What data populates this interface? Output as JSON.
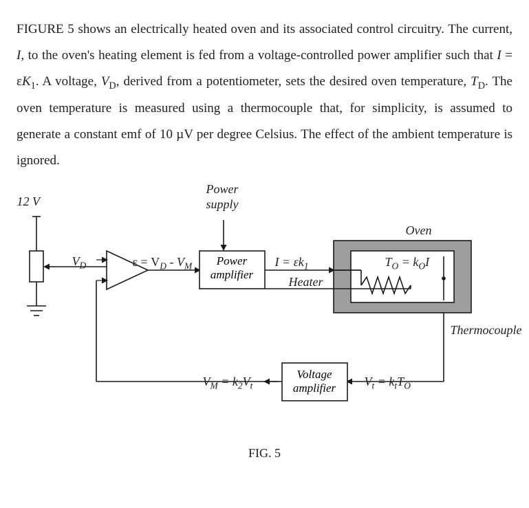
{
  "paragraph": {
    "parts": [
      {
        "t": "FIGURE 5 shows an electrically heated oven and its associated control circuitry. The current, "
      },
      {
        "t": "I",
        "i": true
      },
      {
        "t": ", to the oven's heating element is fed from a voltage-controlled power amplifier such that "
      },
      {
        "t": "I ",
        "i": true
      },
      {
        "t": "= ε"
      },
      {
        "t": "K",
        "i": true
      },
      {
        "t": "1",
        "sub": true
      },
      {
        "t": ". A voltage, "
      },
      {
        "t": "V",
        "i": true
      },
      {
        "t": "D",
        "sub": true
      },
      {
        "t": ", derived from a potentiometer, sets the desired oven temperature, "
      },
      {
        "t": "T",
        "i": true
      },
      {
        "t": "D",
        "sub": true
      },
      {
        "t": ". The oven temperature is measured using a thermocouple that, for simplicity, is assumed to generate a constant emf of 10 µV per degree Celsius. The effect of the ambient temperature is ignored."
      }
    ]
  },
  "figure": {
    "label_12V": "12 V",
    "label_power_supply_1": "Power",
    "label_power_supply_2": "supply",
    "label_oven": "Oven",
    "label_thermocouple": "Thermocouple",
    "label_VD": "V",
    "label_VD_sub": "D",
    "eq_epsilon": "ε = V",
    "eq_epsilon_sub1": "D",
    "eq_epsilon_mid": " - V",
    "eq_epsilon_sub2": "M",
    "box_power_amp_1": "Power",
    "box_power_amp_2": "amplifier",
    "eq_I": "I = εk",
    "eq_I_sub": "1",
    "label_heater": "Heater",
    "eq_To": "T",
    "eq_To_sub1": "O",
    "eq_To_mid": " = k",
    "eq_To_sub2": "O",
    "eq_To_end": "I",
    "box_volt_amp_1": "Voltage",
    "box_volt_amp_2": "amplifier",
    "eq_VM": "V",
    "eq_VM_sub1": "M",
    "eq_VM_mid": " = k",
    "eq_VM_sub2": "2",
    "eq_VM_end": "V",
    "eq_VM_sub3": "t",
    "eq_Vt": "V",
    "eq_Vt_sub1": "t",
    "eq_Vt_mid": " = k",
    "eq_Vt_sub2": "t",
    "eq_Vt_end": "T",
    "eq_Vt_sub3": "O",
    "caption": "FIG. 5"
  },
  "style": {
    "stroke": "#1a1a1a",
    "stroke_width": 1.6,
    "oven_outer_fill": "#9e9e9e",
    "oven_inner_fill": "#ffffff",
    "background": "#ffffff"
  }
}
